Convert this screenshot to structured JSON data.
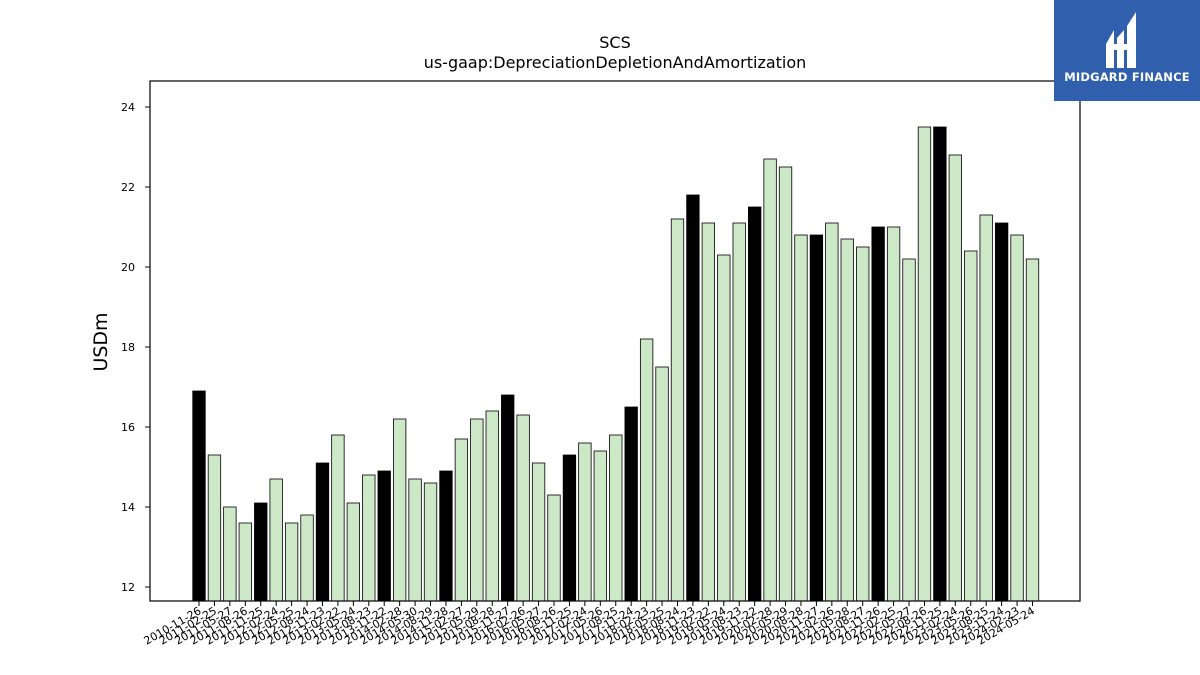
{
  "brand": {
    "logo_text": "MIDGARD FINANCE",
    "logo_bg": "#2f5fad"
  },
  "chart_data": {
    "type": "bar",
    "title": "SCS",
    "subtitle": "us-gaap:DepreciationDepletionAndAmortization",
    "xlabel": "",
    "ylabel": "USDm",
    "ylim": [
      11.65,
      24.65
    ],
    "yticks": [
      12,
      14,
      16,
      18,
      20,
      22,
      24
    ],
    "grid": false,
    "colors": {
      "highlight": "#000000",
      "normal": "#cde8c6",
      "edge": "#000000"
    },
    "categories": [
      "2010-11-26",
      "2011-02-25",
      "2011-05-27",
      "2011-08-26",
      "2011-11-25",
      "2012-02-24",
      "2012-05-25",
      "2012-08-24",
      "2012-11-23",
      "2013-02-22",
      "2013-05-24",
      "2013-08-23",
      "2013-11-22",
      "2014-02-28",
      "2014-05-30",
      "2014-08-29",
      "2014-11-28",
      "2015-02-27",
      "2015-05-29",
      "2015-08-28",
      "2015-11-27",
      "2016-02-26",
      "2016-05-27",
      "2016-08-26",
      "2016-11-25",
      "2017-02-24",
      "2017-05-26",
      "2017-08-25",
      "2017-11-24",
      "2018-02-23",
      "2018-05-25",
      "2018-08-24",
      "2018-11-23",
      "2019-02-22",
      "2019-05-24",
      "2019-08-23",
      "2019-11-22",
      "2020-02-28",
      "2020-05-29",
      "2020-08-28",
      "2020-11-27",
      "2021-02-26",
      "2021-05-28",
      "2021-08-27",
      "2021-11-26",
      "2022-02-25",
      "2022-05-27",
      "2022-08-26",
      "2022-11-25",
      "2023-02-24",
      "2023-05-26",
      "2023-08-25",
      "2023-11-24",
      "2024-02-23",
      "2024-05-24"
    ],
    "values": [
      16.9,
      15.3,
      14.0,
      13.6,
      14.1,
      14.7,
      13.6,
      13.8,
      15.1,
      15.8,
      14.1,
      14.8,
      14.9,
      16.2,
      14.7,
      14.6,
      14.9,
      15.7,
      16.2,
      16.4,
      16.8,
      16.3,
      15.1,
      14.3,
      15.3,
      15.6,
      15.4,
      15.8,
      16.5,
      18.2,
      17.5,
      21.2,
      21.8,
      21.1,
      20.3,
      21.1,
      21.5,
      22.7,
      22.5,
      20.8,
      20.8,
      21.1,
      20.7,
      20.5,
      21.0,
      21.0,
      20.2,
      23.5,
      23.5,
      22.8,
      20.4,
      21.3,
      21.1,
      20.8,
      20.2
    ],
    "highlighted": [
      0,
      4,
      8,
      12,
      16,
      20,
      24,
      28,
      32,
      36,
      40,
      44,
      48,
      52
    ]
  }
}
